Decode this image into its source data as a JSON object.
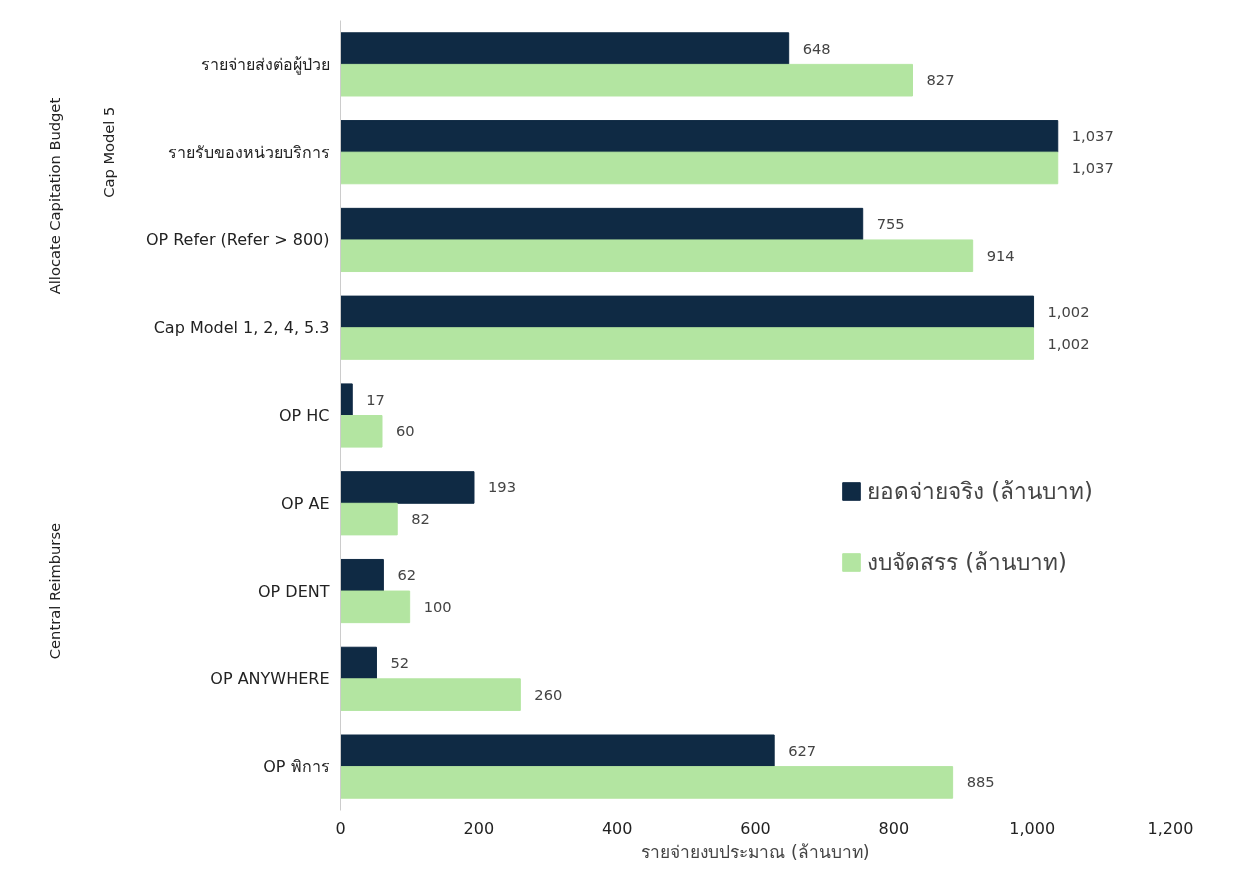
{
  "chart_data": {
    "type": "bar",
    "orientation": "horizontal",
    "xlabel": "รายจ่ายงบประมาณ (ล้านบาท)",
    "categories": [
      "รายจ่ายส่งต่อผู้ป่วย",
      "รายรับของหน่วยบริการ",
      "OP Refer (Refer > 800)",
      "Cap Model 1, 2, 4, 5.3",
      "OP HC",
      "OP AE",
      "OP DENT",
      "OP ANYWHERE",
      "OP พิการ"
    ],
    "series": [
      {
        "name": "ยอดจ่ายจริง (ล้านบาท)",
        "color": "#0f2a44",
        "values": [
          648,
          1037,
          755,
          1002,
          17,
          193,
          62,
          52,
          627
        ],
        "value_labels": [
          "648",
          "1,037",
          "755",
          "1,002",
          "17",
          "193",
          "62",
          "52",
          "627"
        ]
      },
      {
        "name": "งบจัดสรร (ล้านบาท)",
        "color": "#b3e5a1",
        "values": [
          827,
          1037,
          914,
          1002,
          60,
          82,
          100,
          260,
          885
        ],
        "value_labels": [
          "827",
          "1,037",
          "914",
          "1,002",
          "60",
          "82",
          "100",
          "260",
          "885"
        ]
      }
    ],
    "xlim": [
      0,
      1200
    ],
    "xticks": [
      0,
      200,
      400,
      600,
      800,
      {
        "value": 1000,
        "label": "1,000"
      },
      {
        "value": 1200,
        "label": "1,200"
      }
    ],
    "annotations": [
      "Allocate Capitation Budget",
      "Cap Model 5",
      "Central Reimburse"
    ],
    "legend": "right",
    "grid": false
  }
}
